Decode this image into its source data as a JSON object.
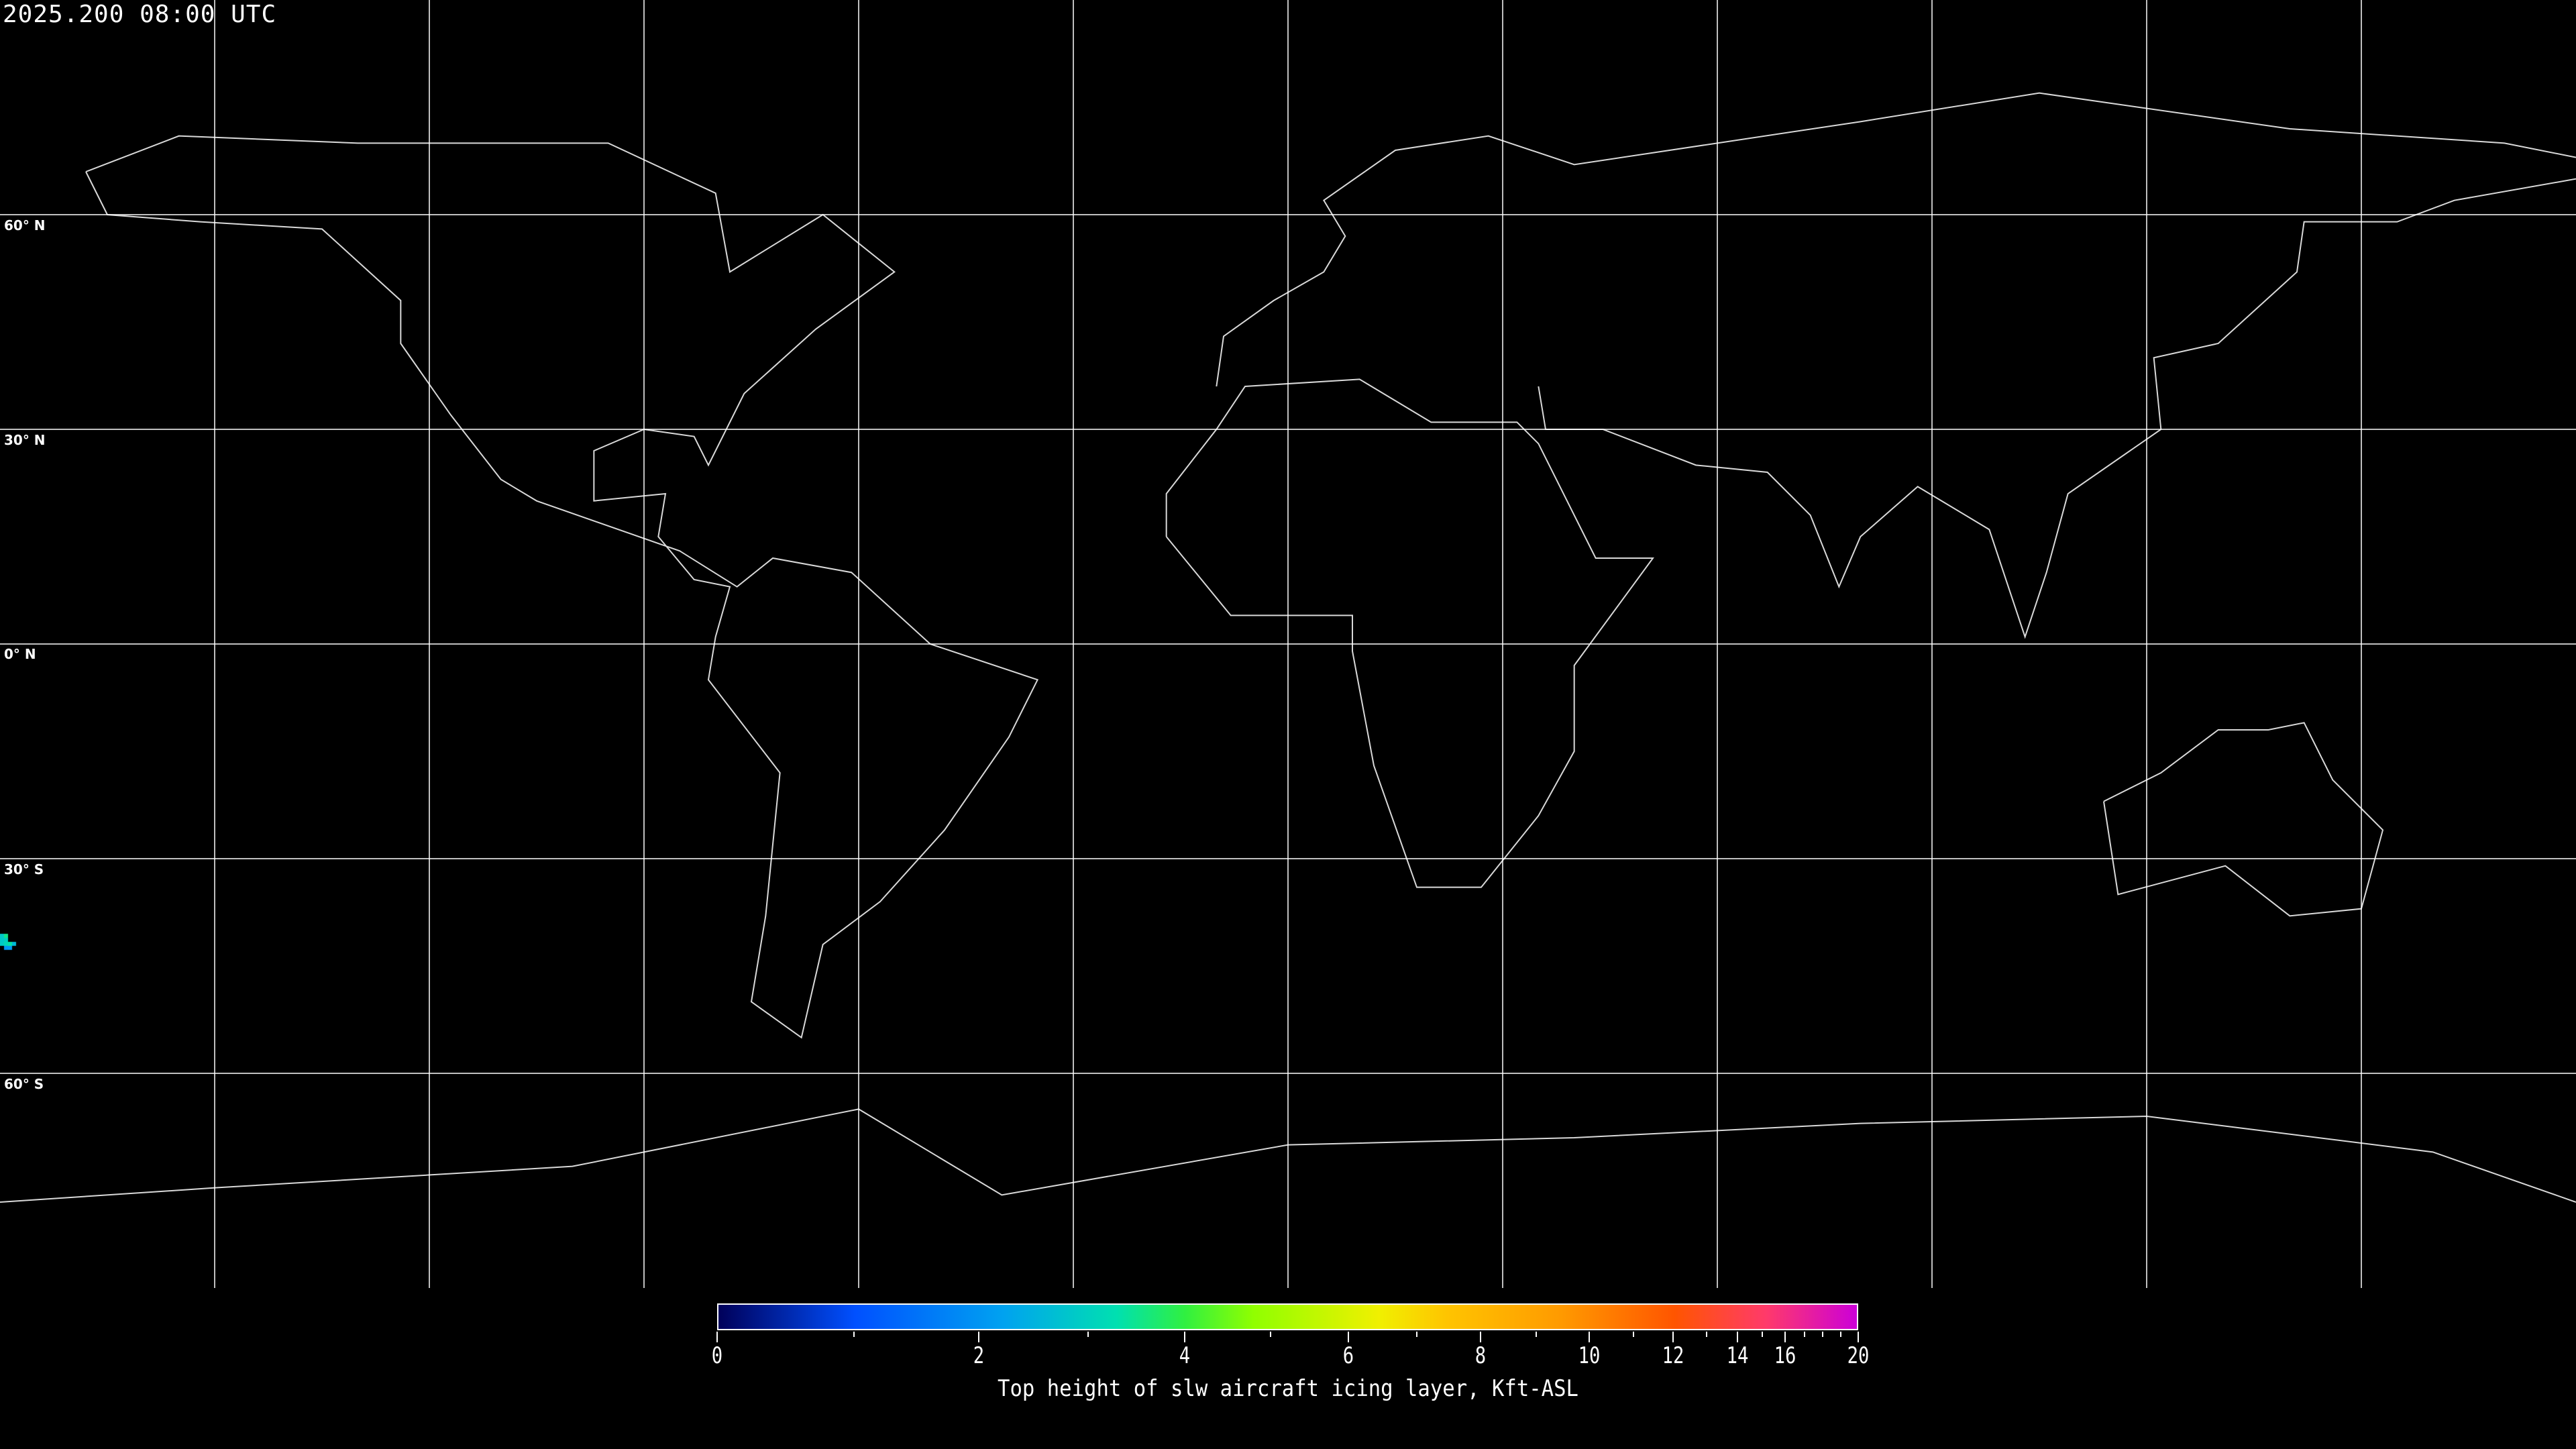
{
  "title": "2025.200 08:00 UTC",
  "map": {
    "projection": "equirectangular",
    "background": "#000000",
    "gridline_color": "#ffffff",
    "coastline_color": "#ffffff",
    "lat_labels": [
      "60° N",
      "30° N",
      "0° N",
      "30° S",
      "60° S"
    ],
    "lat_values": [
      60,
      30,
      0,
      -30,
      -60
    ],
    "lon_gridlines": [
      -150,
      -120,
      -90,
      -60,
      -30,
      0,
      30,
      60,
      90,
      120,
      150
    ]
  },
  "colorbar": {
    "label": "Top height of slw aircraft icing layer, Kft-ASL",
    "range": [
      0,
      20
    ],
    "major_ticks": [
      "0",
      "2",
      "4",
      "6",
      "8",
      "10",
      "12",
      "14",
      "16",
      "20"
    ],
    "minor_ticks": [
      1,
      3,
      5,
      7,
      9,
      11,
      13,
      15,
      17,
      18,
      19
    ],
    "colors": [
      "#00005a",
      "#0050ff",
      "#00a2f0",
      "#00e0b0",
      "#30f040",
      "#90ff00",
      "#f0f000",
      "#ffc400",
      "#ff9a00",
      "#ff5500",
      "#ff3a6a",
      "#cc00d8"
    ]
  }
}
